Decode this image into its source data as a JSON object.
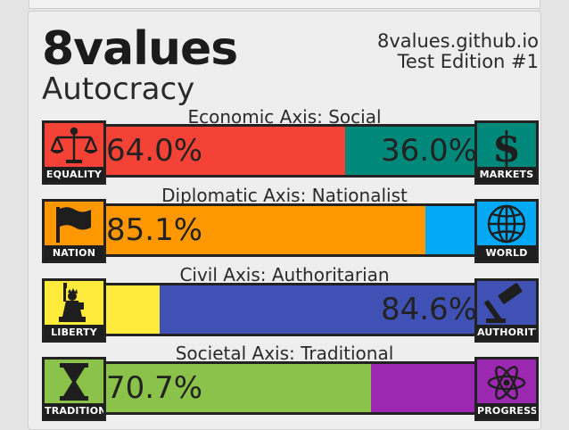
{
  "header": {
    "title": "8values",
    "ideology": "Autocracy",
    "site": "8values.github.io",
    "edition": "Test Edition #1"
  },
  "axes": [
    {
      "label": "Economic Axis: Social",
      "left_icon": {
        "name": "scales-icon",
        "label": "EQUALITY",
        "color": "#f44336"
      },
      "right_icon": {
        "name": "dollar-icon",
        "label": "MARKETS",
        "color": "#00897b"
      },
      "left_value": 64.0,
      "right_value": 36.0,
      "left_text": "64.0%",
      "right_text": "36.0%",
      "left_color": "#f44336",
      "right_color": "#00897b"
    },
    {
      "label": "Diplomatic Axis: Nationalist",
      "left_icon": {
        "name": "flag-icon",
        "label": "NATION",
        "color": "#ff9800"
      },
      "right_icon": {
        "name": "globe-icon",
        "label": "WORLD",
        "color": "#03a9f4"
      },
      "left_value": 85.1,
      "right_value": 14.9,
      "left_text": "85.1%",
      "right_text": "",
      "left_color": "#ff9800",
      "right_color": "#03a9f4"
    },
    {
      "label": "Civil Axis: Authoritarian",
      "left_icon": {
        "name": "statue-of-liberty-icon",
        "label": "LIBERTY",
        "color": "#ffeb3b"
      },
      "right_icon": {
        "name": "gavel-icon",
        "label": "AUTHORITY",
        "color": "#3f51b5"
      },
      "left_value": 15.4,
      "right_value": 84.6,
      "left_text": "",
      "right_text": "84.6%",
      "left_color": "#ffeb3b",
      "right_color": "#3f51b5"
    },
    {
      "label": "Societal Axis: Traditional",
      "left_icon": {
        "name": "hourglass-icon",
        "label": "TRADITION",
        "color": "#8bc34a"
      },
      "right_icon": {
        "name": "atom-icon",
        "label": "PROGRESS",
        "color": "#9c27b0"
      },
      "left_value": 70.7,
      "right_value": 29.3,
      "left_text": "70.7%",
      "right_text": "",
      "left_color": "#8bc34a",
      "right_color": "#9c27b0"
    }
  ]
}
